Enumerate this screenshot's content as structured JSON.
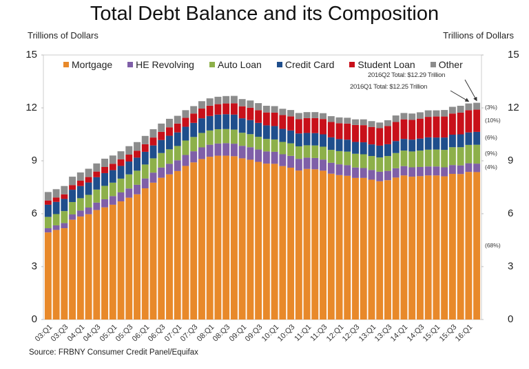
{
  "chart_data": {
    "type": "bar",
    "stacked": true,
    "title": "Total Debt Balance and its Composition",
    "ylabel_left": "Trillions of Dollars",
    "ylabel_right": "Trillions of Dollars",
    "ylim": [
      0,
      15
    ],
    "yticks": [
      "0",
      "3",
      "6",
      "9",
      "12",
      "15"
    ],
    "xtick_labels": [
      "03:Q1",
      "03:Q3",
      "04:Q1",
      "04:Q3",
      "05:Q1",
      "05:Q3",
      "06:Q1",
      "06:Q3",
      "07:Q1",
      "07:Q3",
      "08:Q1",
      "08:Q3",
      "09:Q1",
      "09:Q3",
      "10:Q1",
      "10:Q3",
      "11:Q1",
      "11:Q3",
      "12:Q1",
      "12:Q3",
      "13:Q1",
      "13:Q3",
      "14:Q1",
      "14:Q3",
      "15:Q1",
      "15:Q3",
      "16:Q1"
    ],
    "categories": [
      "03:Q1",
      "03:Q2",
      "03:Q3",
      "03:Q4",
      "04:Q1",
      "04:Q2",
      "04:Q3",
      "04:Q4",
      "05:Q1",
      "05:Q2",
      "05:Q3",
      "05:Q4",
      "06:Q1",
      "06:Q2",
      "06:Q3",
      "06:Q4",
      "07:Q1",
      "07:Q2",
      "07:Q3",
      "07:Q4",
      "08:Q1",
      "08:Q2",
      "08:Q3",
      "08:Q4",
      "09:Q1",
      "09:Q2",
      "09:Q3",
      "09:Q4",
      "10:Q1",
      "10:Q2",
      "10:Q3",
      "10:Q4",
      "11:Q1",
      "11:Q2",
      "11:Q3",
      "11:Q4",
      "12:Q1",
      "12:Q2",
      "12:Q3",
      "12:Q4",
      "13:Q1",
      "13:Q2",
      "13:Q3",
      "13:Q4",
      "14:Q1",
      "14:Q2",
      "14:Q3",
      "14:Q4",
      "15:Q1",
      "15:Q2",
      "15:Q3",
      "15:Q4",
      "16:Q1",
      "16:Q2"
    ],
    "series": [
      {
        "name": "Mortgage",
        "color": "#E8892A",
        "values": [
          4.94,
          5.08,
          5.18,
          5.66,
          5.84,
          5.97,
          6.21,
          6.36,
          6.51,
          6.7,
          6.91,
          7.1,
          7.44,
          7.76,
          8.04,
          8.23,
          8.42,
          8.71,
          8.91,
          9.1,
          9.23,
          9.29,
          9.29,
          9.26,
          9.14,
          9.06,
          8.94,
          8.84,
          8.83,
          8.7,
          8.61,
          8.45,
          8.54,
          8.52,
          8.44,
          8.27,
          8.19,
          8.15,
          8.03,
          8.03,
          7.93,
          7.84,
          7.9,
          8.05,
          8.17,
          8.1,
          8.13,
          8.17,
          8.17,
          8.12,
          8.26,
          8.25,
          8.37,
          8.36
        ]
      },
      {
        "name": "HE Revolving",
        "color": "#7F5FA8",
        "values": [
          0.24,
          0.26,
          0.29,
          0.3,
          0.34,
          0.38,
          0.42,
          0.46,
          0.49,
          0.51,
          0.52,
          0.54,
          0.56,
          0.57,
          0.58,
          0.6,
          0.61,
          0.62,
          0.63,
          0.66,
          0.68,
          0.69,
          0.71,
          0.71,
          0.71,
          0.71,
          0.7,
          0.69,
          0.68,
          0.67,
          0.67,
          0.66,
          0.64,
          0.64,
          0.63,
          0.62,
          0.61,
          0.6,
          0.59,
          0.56,
          0.55,
          0.54,
          0.53,
          0.53,
          0.53,
          0.53,
          0.52,
          0.51,
          0.51,
          0.51,
          0.5,
          0.49,
          0.49,
          0.48
        ]
      },
      {
        "name": "Auto Loan",
        "color": "#8DB04A",
        "values": [
          0.64,
          0.64,
          0.68,
          0.7,
          0.7,
          0.72,
          0.74,
          0.76,
          0.76,
          0.78,
          0.8,
          0.8,
          0.79,
          0.81,
          0.82,
          0.82,
          0.81,
          0.82,
          0.81,
          0.82,
          0.81,
          0.81,
          0.8,
          0.8,
          0.74,
          0.74,
          0.72,
          0.71,
          0.7,
          0.7,
          0.71,
          0.71,
          0.7,
          0.71,
          0.73,
          0.73,
          0.75,
          0.77,
          0.78,
          0.78,
          0.79,
          0.81,
          0.84,
          0.86,
          0.88,
          0.9,
          0.93,
          0.95,
          0.96,
          0.99,
          1.01,
          1.03,
          1.04,
          1.07
        ]
      },
      {
        "name": "Credit Card",
        "color": "#1F4E8C",
        "values": [
          0.69,
          0.69,
          0.69,
          0.7,
          0.69,
          0.7,
          0.7,
          0.72,
          0.71,
          0.72,
          0.73,
          0.74,
          0.72,
          0.73,
          0.74,
          0.77,
          0.77,
          0.78,
          0.8,
          0.83,
          0.82,
          0.83,
          0.84,
          0.85,
          0.82,
          0.8,
          0.79,
          0.77,
          0.76,
          0.74,
          0.73,
          0.73,
          0.7,
          0.7,
          0.7,
          0.71,
          0.68,
          0.68,
          0.67,
          0.68,
          0.66,
          0.67,
          0.67,
          0.68,
          0.66,
          0.67,
          0.68,
          0.7,
          0.68,
          0.7,
          0.71,
          0.73,
          0.71,
          0.73
        ]
      },
      {
        "name": "Student Loan",
        "color": "#C8101A",
        "values": [
          0.24,
          0.25,
          0.26,
          0.26,
          0.3,
          0.31,
          0.32,
          0.35,
          0.36,
          0.37,
          0.39,
          0.39,
          0.43,
          0.45,
          0.46,
          0.48,
          0.5,
          0.51,
          0.53,
          0.55,
          0.58,
          0.59,
          0.61,
          0.64,
          0.68,
          0.7,
          0.72,
          0.73,
          0.76,
          0.78,
          0.8,
          0.81,
          0.84,
          0.85,
          0.87,
          0.87,
          0.9,
          0.91,
          0.96,
          0.97,
          0.99,
          0.99,
          1.03,
          1.08,
          1.11,
          1.12,
          1.13,
          1.16,
          1.19,
          1.19,
          1.2,
          1.23,
          1.26,
          1.26
        ]
      },
      {
        "name": "Other",
        "color": "#8C8C8C",
        "values": [
          0.48,
          0.47,
          0.47,
          0.48,
          0.47,
          0.47,
          0.46,
          0.47,
          0.47,
          0.46,
          0.48,
          0.49,
          0.47,
          0.47,
          0.47,
          0.48,
          0.44,
          0.43,
          0.42,
          0.42,
          0.42,
          0.42,
          0.42,
          0.42,
          0.41,
          0.41,
          0.4,
          0.38,
          0.37,
          0.36,
          0.36,
          0.35,
          0.34,
          0.34,
          0.33,
          0.33,
          0.33,
          0.33,
          0.32,
          0.33,
          0.33,
          0.32,
          0.33,
          0.37,
          0.36,
          0.36,
          0.36,
          0.37,
          0.35,
          0.37,
          0.38,
          0.39,
          0.38,
          0.39
        ]
      }
    ],
    "composition_labels": [
      {
        "series": "Other",
        "text": "(3%)"
      },
      {
        "series": "Student Loan",
        "text": "(10%)"
      },
      {
        "series": "Credit Card",
        "text": "(6%)"
      },
      {
        "series": "Auto Loan",
        "text": "(9%)"
      },
      {
        "series": "HE Revolving",
        "text": "(4%)"
      },
      {
        "series": "Mortgage",
        "text": "(68%)"
      }
    ],
    "annotations": [
      {
        "text": "2016Q2 Total: $12.29 Trillion",
        "target": "16:Q2"
      },
      {
        "text": "2016Q1 Total: $12.25 Trillion",
        "target": "16:Q1"
      }
    ],
    "legend_position": "top",
    "grid": false,
    "source": "Source: FRBNY Consumer Credit Panel/Equifax"
  }
}
